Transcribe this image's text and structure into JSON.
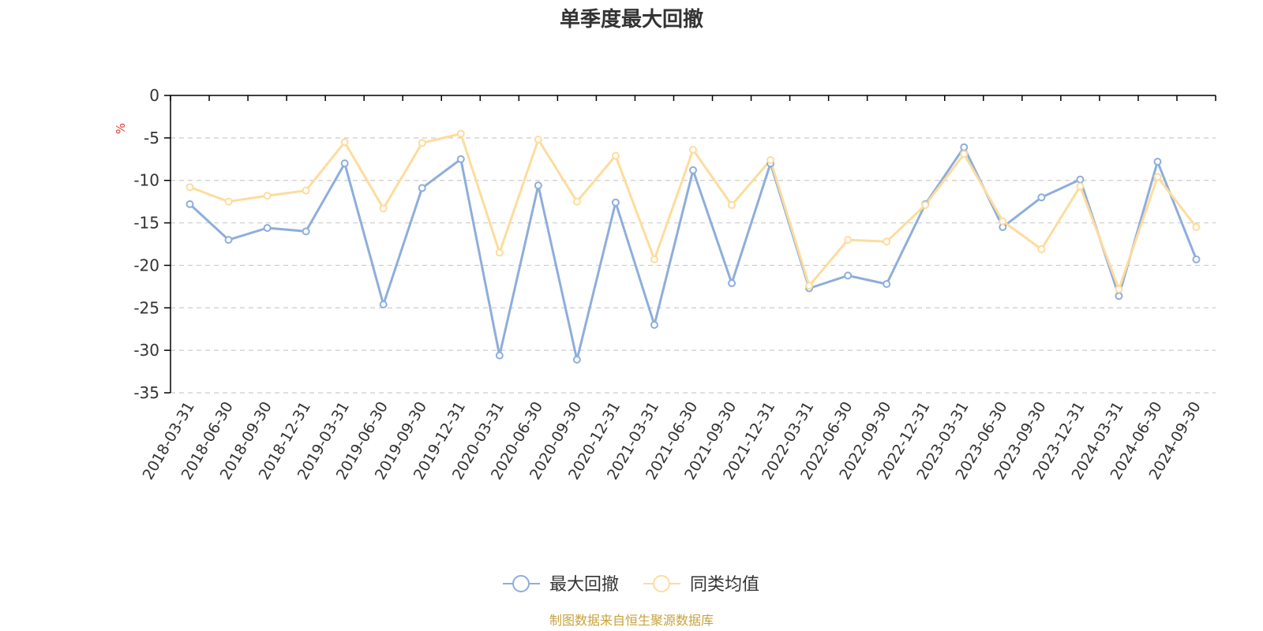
{
  "chart_data": {
    "type": "line",
    "title": "单季度最大回撤",
    "ylabel": "%",
    "ylim": [
      -35,
      0
    ],
    "yticks": [
      0,
      -5,
      -10,
      -15,
      -20,
      -25,
      -30,
      -35
    ],
    "grid": true,
    "categories": [
      "2018-03-31",
      "2018-06-30",
      "2018-09-30",
      "2018-12-31",
      "2019-03-31",
      "2019-06-30",
      "2019-09-30",
      "2019-12-31",
      "2020-03-31",
      "2020-06-30",
      "2020-09-30",
      "2020-12-31",
      "2021-03-31",
      "2021-06-30",
      "2021-09-30",
      "2021-12-31",
      "2022-03-31",
      "2022-06-30",
      "2022-09-30",
      "2022-12-31",
      "2023-03-31",
      "2023-06-30",
      "2023-09-30",
      "2023-12-31",
      "2024-03-31",
      "2024-06-30",
      "2024-09-30"
    ],
    "series": [
      {
        "name": "最大回撤",
        "color": "#8eaedb",
        "values": [
          -12.8,
          -17.0,
          -15.6,
          -16.0,
          -8.0,
          -24.6,
          -10.9,
          -7.5,
          -30.6,
          -10.6,
          -31.1,
          -12.6,
          -27.0,
          -8.8,
          -22.1,
          -8.0,
          -22.7,
          -21.2,
          -22.2,
          -12.8,
          -6.1,
          -15.5,
          -12.0,
          -9.9,
          -23.6,
          -7.8,
          -19.3
        ]
      },
      {
        "name": "同类均值",
        "color": "#fddc9d",
        "values": [
          -10.8,
          -12.5,
          -11.8,
          -11.2,
          -5.5,
          -13.3,
          -5.6,
          -4.5,
          -18.5,
          -5.2,
          -12.5,
          -7.1,
          -19.3,
          -6.4,
          -12.9,
          -7.6,
          -22.4,
          -17.0,
          -17.2,
          -12.9,
          -6.9,
          -14.8,
          -18.1,
          -10.7,
          -22.8,
          -9.6,
          -15.5
        ]
      }
    ],
    "legend_position": "bottom-center",
    "source_note": "制图数据来自恒生聚源数据库"
  },
  "colors": {
    "axis": "#000000",
    "grid": "#cccccc",
    "text": "#333333",
    "unit": "#e53935",
    "source": "#c8a23c"
  }
}
